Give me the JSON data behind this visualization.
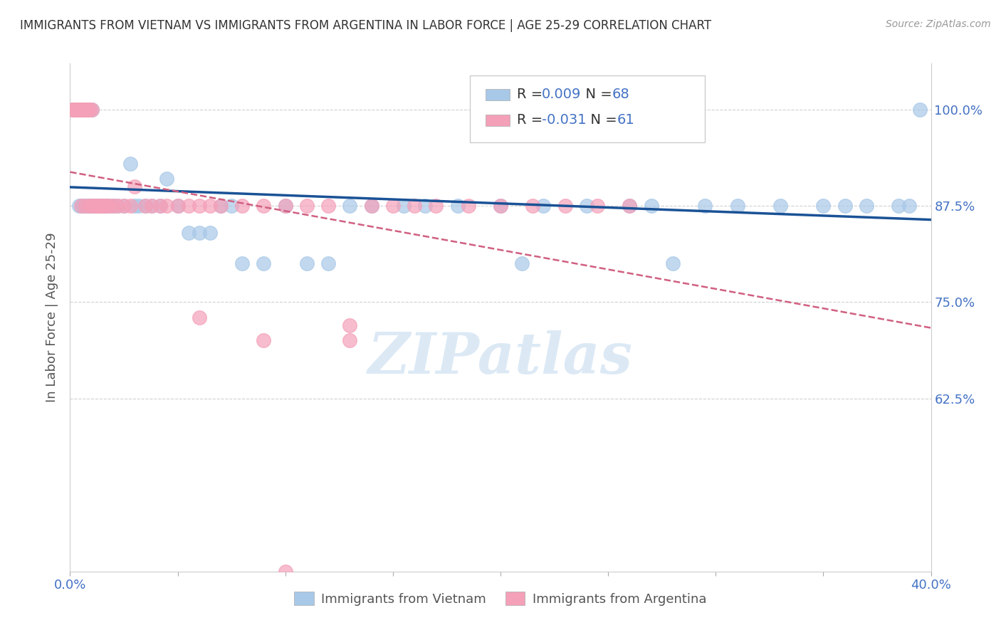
{
  "title": "IMMIGRANTS FROM VIETNAM VS IMMIGRANTS FROM ARGENTINA IN LABOR FORCE | AGE 25-29 CORRELATION CHART",
  "source": "Source: ZipAtlas.com",
  "ylabel": "In Labor Force | Age 25-29",
  "xlim": [
    0.0,
    0.4
  ],
  "ylim": [
    0.4,
    1.06
  ],
  "ytick_vals": [
    0.625,
    0.75,
    0.875,
    1.0
  ],
  "ytick_labels": [
    "62.5%",
    "75.0%",
    "87.5%",
    "100.0%"
  ],
  "xtick_vals": [
    0.0,
    0.05,
    0.1,
    0.15,
    0.2,
    0.25,
    0.3,
    0.35,
    0.4
  ],
  "xtick_labels": [
    "0.0%",
    "",
    "",
    "",
    "",
    "",
    "",
    "",
    "40.0%"
  ],
  "vietnam_R": 0.009,
  "vietnam_N": 68,
  "argentina_R": -0.031,
  "argentina_N": 61,
  "vietnam_color": "#a8c8e8",
  "argentina_color": "#f4a0b8",
  "vietnam_line_color": "#1a5296",
  "argentina_line_color": "#d06080",
  "legend_R_color": "#4472c4",
  "title_color": "#333333",
  "axis_tick_color": "#4472c4",
  "watermark": "ZIPatlas",
  "watermark_color": "#a8c8e8",
  "background_color": "#ffffff",
  "grid_color": "#cccccc",
  "vietnam_x": [
    0.001,
    0.002,
    0.003,
    0.004,
    0.004,
    0.005,
    0.005,
    0.006,
    0.006,
    0.007,
    0.007,
    0.008,
    0.008,
    0.009,
    0.009,
    0.01,
    0.01,
    0.011,
    0.011,
    0.012,
    0.013,
    0.014,
    0.015,
    0.016,
    0.017,
    0.018,
    0.02,
    0.022,
    0.025,
    0.028,
    0.03,
    0.032,
    0.035,
    0.038,
    0.042,
    0.045,
    0.05,
    0.055,
    0.06,
    0.065,
    0.07,
    0.075,
    0.08,
    0.09,
    0.1,
    0.11,
    0.12,
    0.13,
    0.14,
    0.155,
    0.165,
    0.18,
    0.2,
    0.21,
    0.22,
    0.24,
    0.26,
    0.27,
    0.28,
    0.295,
    0.31,
    0.33,
    0.35,
    0.36,
    0.37,
    0.385,
    0.39,
    0.395
  ],
  "vietnam_y": [
    1.0,
    1.0,
    1.0,
    0.875,
    1.0,
    0.875,
    1.0,
    0.875,
    1.0,
    0.875,
    1.0,
    0.875,
    1.0,
    0.875,
    1.0,
    0.875,
    1.0,
    0.875,
    0.875,
    0.875,
    0.875,
    0.875,
    0.875,
    0.875,
    0.875,
    0.875,
    0.875,
    0.875,
    0.875,
    0.93,
    0.875,
    0.875,
    0.875,
    0.875,
    0.875,
    0.91,
    0.875,
    0.84,
    0.84,
    0.84,
    0.875,
    0.875,
    0.8,
    0.8,
    0.875,
    0.8,
    0.8,
    0.875,
    0.875,
    0.875,
    0.875,
    0.875,
    0.875,
    0.8,
    0.875,
    0.875,
    0.875,
    0.875,
    0.8,
    0.875,
    0.875,
    0.875,
    0.875,
    0.875,
    0.875,
    0.875,
    0.875,
    1.0
  ],
  "argentina_x": [
    0.001,
    0.002,
    0.002,
    0.003,
    0.003,
    0.004,
    0.004,
    0.005,
    0.005,
    0.006,
    0.006,
    0.007,
    0.007,
    0.008,
    0.008,
    0.009,
    0.009,
    0.01,
    0.01,
    0.011,
    0.012,
    0.013,
    0.014,
    0.015,
    0.016,
    0.017,
    0.018,
    0.02,
    0.022,
    0.025,
    0.028,
    0.03,
    0.035,
    0.038,
    0.042,
    0.045,
    0.05,
    0.055,
    0.06,
    0.065,
    0.07,
    0.08,
    0.09,
    0.1,
    0.11,
    0.12,
    0.13,
    0.14,
    0.15,
    0.16,
    0.17,
    0.185,
    0.2,
    0.215,
    0.23,
    0.245,
    0.26,
    0.13,
    0.09,
    0.06,
    0.1
  ],
  "argentina_y": [
    1.0,
    1.0,
    1.0,
    1.0,
    1.0,
    1.0,
    1.0,
    1.0,
    0.875,
    1.0,
    1.0,
    1.0,
    0.875,
    1.0,
    1.0,
    1.0,
    0.875,
    0.875,
    1.0,
    0.875,
    0.875,
    0.875,
    0.875,
    0.875,
    0.875,
    0.875,
    0.875,
    0.875,
    0.875,
    0.875,
    0.875,
    0.9,
    0.875,
    0.875,
    0.875,
    0.875,
    0.875,
    0.875,
    0.875,
    0.875,
    0.875,
    0.875,
    0.875,
    0.875,
    0.875,
    0.875,
    0.72,
    0.875,
    0.875,
    0.875,
    0.875,
    0.875,
    0.875,
    0.875,
    0.875,
    0.875,
    0.875,
    0.7,
    0.7,
    0.73,
    0.4
  ]
}
